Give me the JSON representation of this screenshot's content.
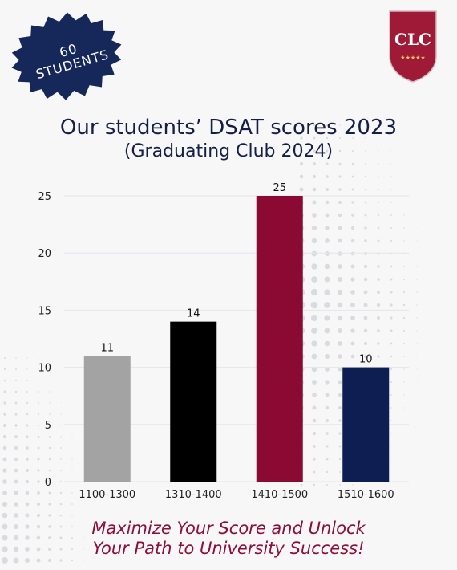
{
  "badge": {
    "line1": "60",
    "line2": "STUDENTS"
  },
  "logo": {
    "text": "CLC",
    "stars": "★★★★★"
  },
  "header": {
    "title": "Our students’ DSAT scores 2023",
    "subtitle": "(Graduating Club 2024)"
  },
  "chart_data": {
    "type": "bar",
    "categories": [
      "1100-1300",
      "1310-1400",
      "1410-1500",
      "1510-1600"
    ],
    "values": [
      11,
      14,
      25,
      10
    ],
    "bar_colors": [
      "#a3a3a3",
      "#000000",
      "#8b0a33",
      "#0e1d52"
    ],
    "yticks": [
      0,
      5,
      10,
      15,
      20,
      25
    ],
    "ylim": [
      0,
      25
    ],
    "grid": true,
    "legend": "none"
  },
  "footer": {
    "line1": "Maximize Your Score and Unlock",
    "line2": "Your Path to University Success!"
  },
  "colors": {
    "badge": "#16285a",
    "title": "#141f45",
    "logo": "#9e1a36",
    "tagline": "#8b0f3a"
  }
}
